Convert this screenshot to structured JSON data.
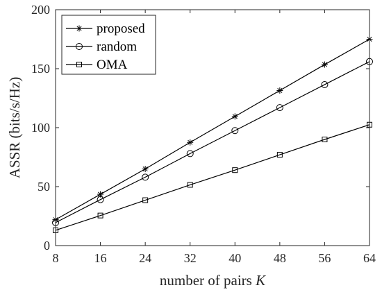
{
  "chart_data": {
    "type": "line",
    "xlabel": "number of pairs",
    "xlabel_var": "K",
    "ylabel": "ASSR (bits/s/Hz)",
    "x": [
      8,
      16,
      24,
      32,
      40,
      48,
      56,
      64
    ],
    "xlim": [
      8,
      64
    ],
    "ylim": [
      0,
      200
    ],
    "xticks": [
      "8",
      "16",
      "24",
      "32",
      "40",
      "48",
      "56",
      "64"
    ],
    "yticks": [
      "0",
      "50",
      "100",
      "150",
      "200"
    ],
    "grid": false,
    "legend_position": "top-left",
    "series": [
      {
        "name": "proposed",
        "marker": "asterisk",
        "color": "#000000",
        "values": [
          22,
          43.5,
          65,
          87.5,
          109.5,
          131.5,
          153.5,
          175
        ]
      },
      {
        "name": "random",
        "marker": "circle",
        "color": "#000000",
        "values": [
          19.5,
          39,
          58,
          78,
          97.5,
          117,
          136.5,
          156
        ]
      },
      {
        "name": "OMA",
        "marker": "square",
        "color": "#000000",
        "values": [
          13,
          25.5,
          38.5,
          51.5,
          64,
          77,
          90,
          102.5
        ]
      }
    ]
  }
}
